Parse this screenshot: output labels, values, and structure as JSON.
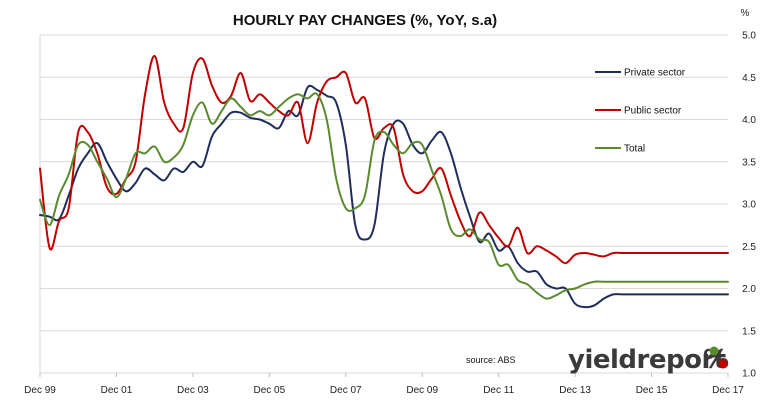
{
  "chart_data": {
    "type": "line",
    "title": "HOURLY PAY CHANGES (%, YoY, s.a)",
    "y_unit": "%",
    "ylim": [
      1.0,
      5.0
    ],
    "y_ticks": [
      "1.0",
      "1.5",
      "2.0",
      "2.5",
      "3.0",
      "3.5",
      "4.0",
      "4.5",
      "5.0"
    ],
    "x_ticks": [
      "Dec 99",
      "Dec 01",
      "Dec 03",
      "Dec 05",
      "Dec 07",
      "Dec 09",
      "Dec 11",
      "Dec 13",
      "Dec 15",
      "Dec 17"
    ],
    "grid": "horizontal",
    "legend_position": "right",
    "source": "source: ABS",
    "brand": "yieldreport",
    "brand_symbol": "%",
    "x": [
      1999.92,
      2000.17,
      2000.42,
      2000.67,
      2000.92,
      2001.17,
      2001.42,
      2001.67,
      2001.92,
      2002.17,
      2002.42,
      2002.67,
      2002.92,
      2003.17,
      2003.42,
      2003.67,
      2003.92,
      2004.17,
      2004.42,
      2004.67,
      2004.92,
      2005.17,
      2005.42,
      2005.67,
      2005.92,
      2006.17,
      2006.42,
      2006.67,
      2006.92,
      2007.17,
      2007.42,
      2007.67,
      2007.92,
      2008.17,
      2008.42,
      2008.67,
      2008.92,
      2009.17,
      2009.42,
      2009.67,
      2009.92,
      2010.17,
      2010.42,
      2010.67,
      2010.92,
      2011.17,
      2011.42,
      2011.67,
      2011.92,
      2012.17,
      2012.42,
      2012.67,
      2012.92,
      2013.17,
      2013.42,
      2013.67,
      2013.92,
      2014.17,
      2014.42,
      2014.67,
      2014.92,
      2015.17,
      2015.42,
      2015.67,
      2015.92,
      2016.17,
      2016.42,
      2016.67,
      2016.92,
      2017.17,
      2017.42,
      2017.67,
      2017.92
    ],
    "series": [
      {
        "name": "Private sector",
        "color": "#1f2d5c",
        "values": [
          2.87,
          2.85,
          2.82,
          3.1,
          3.42,
          3.6,
          3.72,
          3.5,
          3.3,
          3.15,
          3.25,
          3.42,
          3.35,
          3.28,
          3.42,
          3.38,
          3.5,
          3.45,
          3.8,
          3.95,
          4.08,
          4.08,
          4.02,
          4.0,
          3.95,
          3.9,
          4.1,
          4.05,
          4.38,
          4.35,
          4.28,
          4.2,
          3.7,
          2.75,
          2.58,
          2.75,
          3.6,
          3.95,
          3.95,
          3.7,
          3.6,
          3.75,
          3.85,
          3.6,
          3.2,
          2.85,
          2.55,
          2.65,
          2.45,
          2.5,
          2.3,
          2.2,
          2.2,
          2.05,
          2.0,
          2.0,
          1.82,
          1.78,
          1.8,
          1.88,
          1.93,
          1.93,
          1.93,
          1.93,
          1.93,
          1.93,
          1.93,
          1.93,
          1.93,
          1.93,
          1.93,
          1.93,
          1.93
        ]
      },
      {
        "name": "Public sector",
        "color": "#c00000",
        "values": [
          3.42,
          2.48,
          2.8,
          2.95,
          3.85,
          3.85,
          3.6,
          3.2,
          3.12,
          3.3,
          3.5,
          4.3,
          4.75,
          4.2,
          3.95,
          3.9,
          4.55,
          4.72,
          4.4,
          4.2,
          4.28,
          4.55,
          4.22,
          4.3,
          4.2,
          4.1,
          4.05,
          4.2,
          3.72,
          4.2,
          4.45,
          4.5,
          4.55,
          4.2,
          4.25,
          3.78,
          3.9,
          3.9,
          3.35,
          3.15,
          3.15,
          3.3,
          3.42,
          3.1,
          2.8,
          2.62,
          2.9,
          2.75,
          2.6,
          2.5,
          2.72,
          2.42,
          2.5,
          2.45,
          2.38,
          2.3,
          2.4,
          2.42,
          2.4,
          2.38,
          2.42,
          2.42,
          2.42,
          2.42,
          2.42,
          2.42,
          2.42,
          2.42,
          2.42,
          2.42,
          2.42,
          2.42,
          2.42
        ]
      },
      {
        "name": "Total",
        "color": "#5a8a2e",
        "values": [
          3.05,
          2.75,
          3.1,
          3.35,
          3.7,
          3.7,
          3.5,
          3.3,
          3.08,
          3.3,
          3.6,
          3.6,
          3.68,
          3.5,
          3.55,
          3.7,
          4.05,
          4.2,
          3.95,
          4.1,
          4.25,
          4.15,
          4.05,
          4.1,
          4.05,
          4.15,
          4.25,
          4.3,
          4.25,
          4.3,
          4.0,
          3.3,
          2.95,
          2.95,
          3.1,
          3.75,
          3.85,
          3.7,
          3.6,
          3.72,
          3.7,
          3.4,
          3.1,
          2.7,
          2.62,
          2.7,
          2.58,
          2.55,
          2.28,
          2.28,
          2.1,
          2.05,
          1.95,
          1.88,
          1.92,
          1.98,
          2.0,
          2.05,
          2.08,
          2.08,
          2.08,
          2.08,
          2.08,
          2.08,
          2.08,
          2.08,
          2.08,
          2.08,
          2.08,
          2.08,
          2.08,
          2.08,
          2.08
        ]
      }
    ]
  }
}
